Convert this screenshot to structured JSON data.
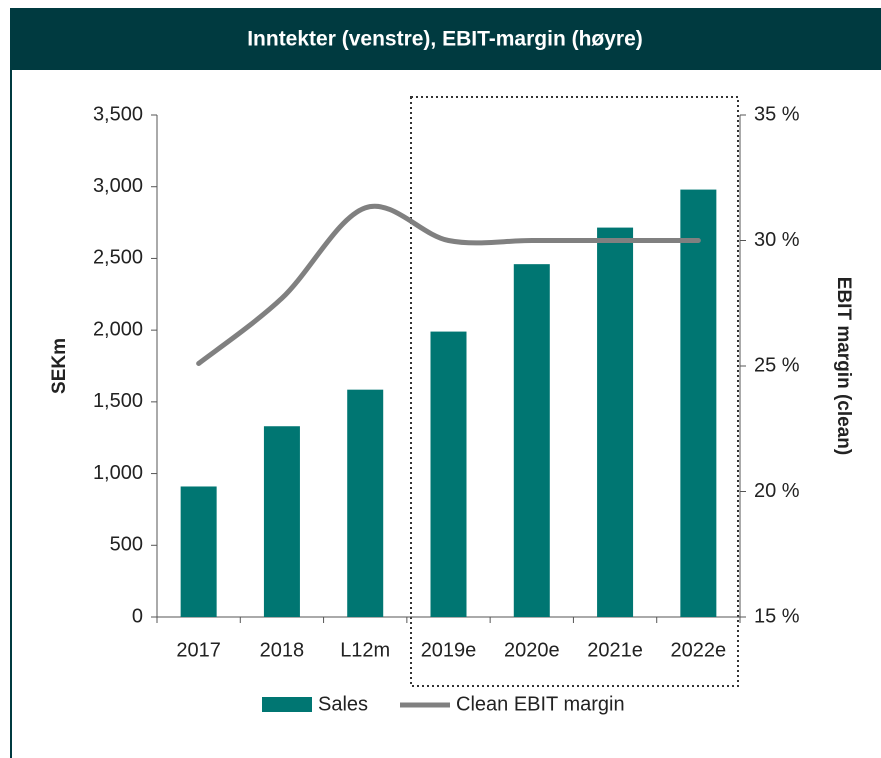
{
  "chart_data": {
    "type": "bar_line",
    "title": "Inntekter (venstre), EBIT-margin (høyre)",
    "categories": [
      "2017",
      "2018",
      "L12m",
      "2019e",
      "2020e",
      "2021e",
      "2022e"
    ],
    "series": [
      {
        "name": "Sales",
        "type": "bar",
        "color": "#007672",
        "values": [
          910,
          1330,
          1585,
          1990,
          2460,
          2715,
          2980
        ]
      },
      {
        "name": "Clean EBIT margin",
        "type": "line",
        "axis": "y2",
        "color": "#808080",
        "values": [
          25.1,
          27.7,
          31.3,
          30.0,
          30.0,
          30.0,
          30.0
        ]
      }
    ],
    "ylabel": "SEKm",
    "y2label": "EBIT margin (clean)",
    "ylim": [
      0,
      3500
    ],
    "yticks": [
      0,
      500,
      {
        "value": 1000,
        "label": "1,000"
      },
      {
        "value": 1500,
        "label": "1,500"
      },
      {
        "value": 2000,
        "label": "2,000"
      },
      {
        "value": 2500,
        "label": "2,500"
      },
      {
        "value": 3000,
        "label": "3,000"
      },
      {
        "value": 3500,
        "label": "3,500"
      }
    ],
    "y2lim": [
      15,
      35
    ],
    "y2ticks": [
      {
        "value": 15,
        "label": "15 %"
      },
      {
        "value": 20,
        "label": "20 %"
      },
      {
        "value": 25,
        "label": "25 %"
      },
      {
        "value": 30,
        "label": "30 %"
      },
      {
        "value": 35,
        "label": "35 %"
      }
    ],
    "legend": "bottom"
  }
}
